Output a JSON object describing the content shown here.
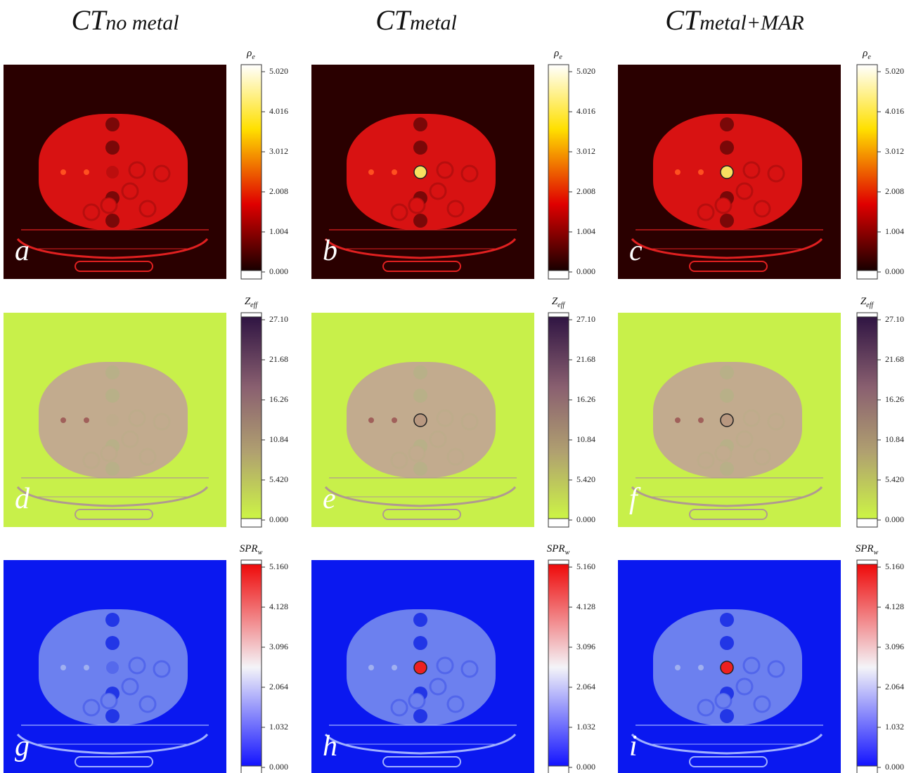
{
  "columns": [
    {
      "main": "CT",
      "sub": "no metal"
    },
    {
      "main": "CT",
      "sub": "metal"
    },
    {
      "main": "CT",
      "sub": "metal+MAR"
    }
  ],
  "rows": [
    {
      "colorbar_label": {
        "main": "ρ",
        "sub": "e"
      },
      "ticks": [
        "5.020",
        "4.016",
        "3.012",
        "2.008",
        "1.004",
        "0.000"
      ],
      "panels": [
        "a",
        "b",
        "c"
      ]
    },
    {
      "colorbar_label": {
        "main": "Z",
        "sub": "eff"
      },
      "ticks": [
        "27.10",
        "21.68",
        "16.26",
        "10.84",
        "5.420",
        "0.000"
      ],
      "panels": [
        "d",
        "e",
        "f"
      ]
    },
    {
      "colorbar_label": {
        "main": "SPR",
        "sub": "w"
      },
      "ticks": [
        "5.160",
        "4.128",
        "3.096",
        "2.064",
        "1.032",
        "0.000"
      ],
      "panels": [
        "g",
        "h",
        "i"
      ]
    }
  ]
}
